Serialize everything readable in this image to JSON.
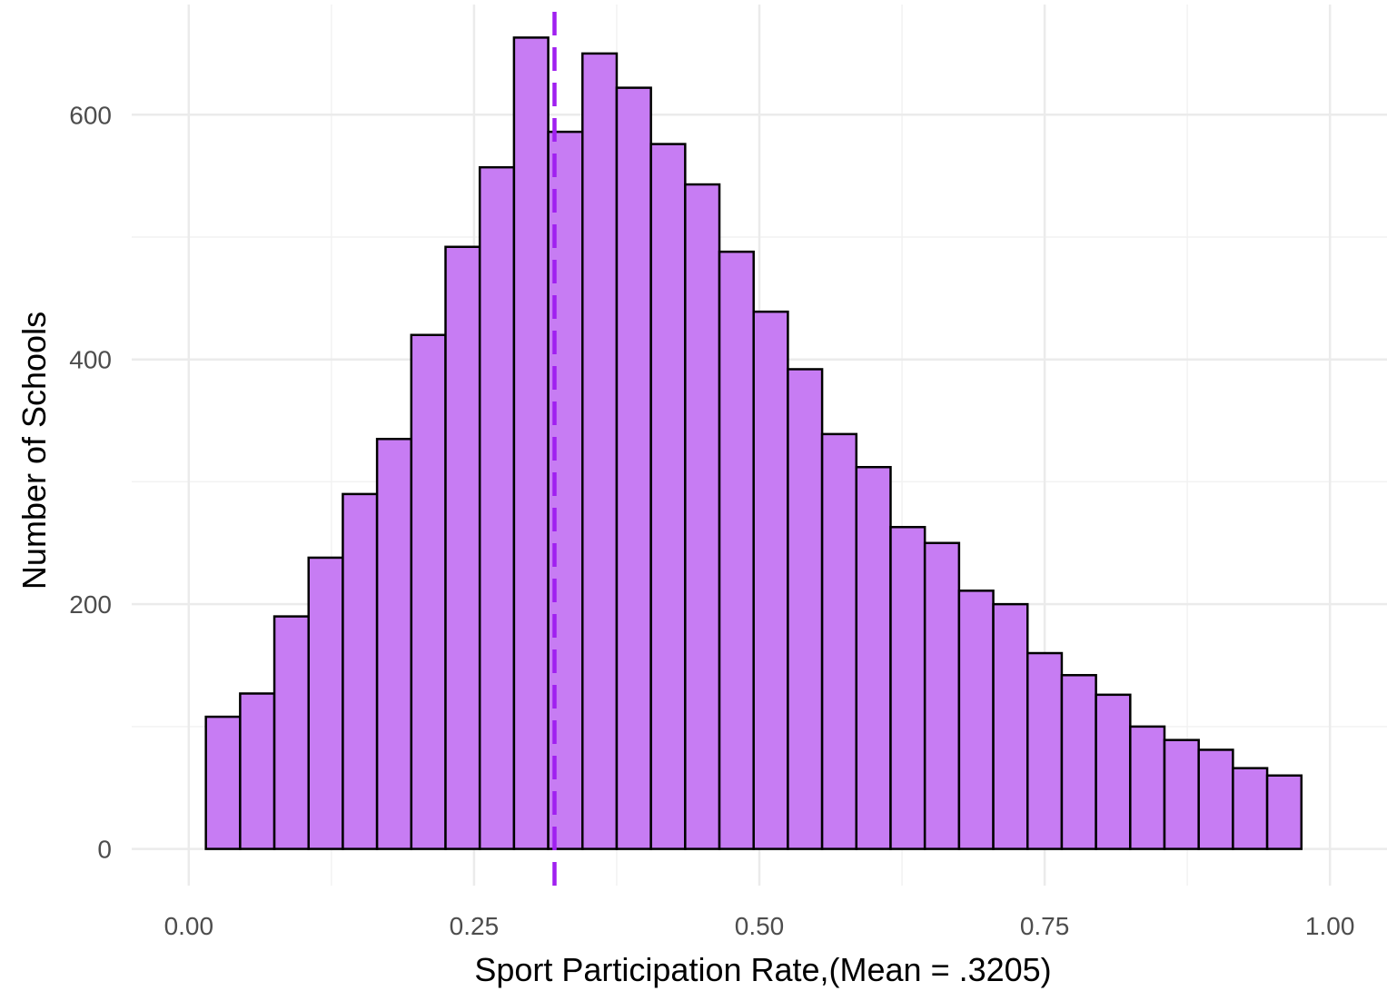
{
  "chart_data": {
    "type": "bar",
    "title": "",
    "xlabel": "Sport Participation Rate,(Mean = .3205)",
    "ylabel": "Number of Schools",
    "xlim": [
      -0.05,
      1.05
    ],
    "ylim": [
      -30,
      690
    ],
    "x_ticks": [
      0.0,
      0.25,
      0.5,
      0.75,
      1.0
    ],
    "x_tick_labels": [
      "0.00",
      "0.25",
      "0.50",
      "0.75",
      "1.00"
    ],
    "y_ticks": [
      0,
      200,
      400,
      600
    ],
    "y_tick_labels": [
      "0",
      "200",
      "400",
      "600"
    ],
    "grid": true,
    "legend": "none",
    "bin_width": 0.03,
    "bin_centers": [
      0.03,
      0.06,
      0.09,
      0.12,
      0.15,
      0.18,
      0.21,
      0.24,
      0.27,
      0.3,
      0.33,
      0.36,
      0.39,
      0.42,
      0.45,
      0.48,
      0.51,
      0.54,
      0.57,
      0.6,
      0.63,
      0.66,
      0.69,
      0.72,
      0.75,
      0.78,
      0.81,
      0.84,
      0.87,
      0.9,
      0.93,
      0.96
    ],
    "values": [
      108,
      127,
      190,
      238,
      290,
      335,
      420,
      492,
      557,
      663,
      586,
      650,
      622,
      576,
      543,
      488,
      439,
      392,
      339,
      312,
      263,
      250,
      211,
      200,
      160,
      142,
      126,
      100,
      89,
      81,
      66,
      60
    ],
    "mean_line": {
      "value": 0.3205,
      "style": "dashed",
      "color": "#a020f0"
    },
    "colors": {
      "bar_fill": "#c77cf3",
      "bar_stroke": "#000000",
      "grid_major": "#ebebeb",
      "grid_minor": "#f2f2f2"
    }
  }
}
